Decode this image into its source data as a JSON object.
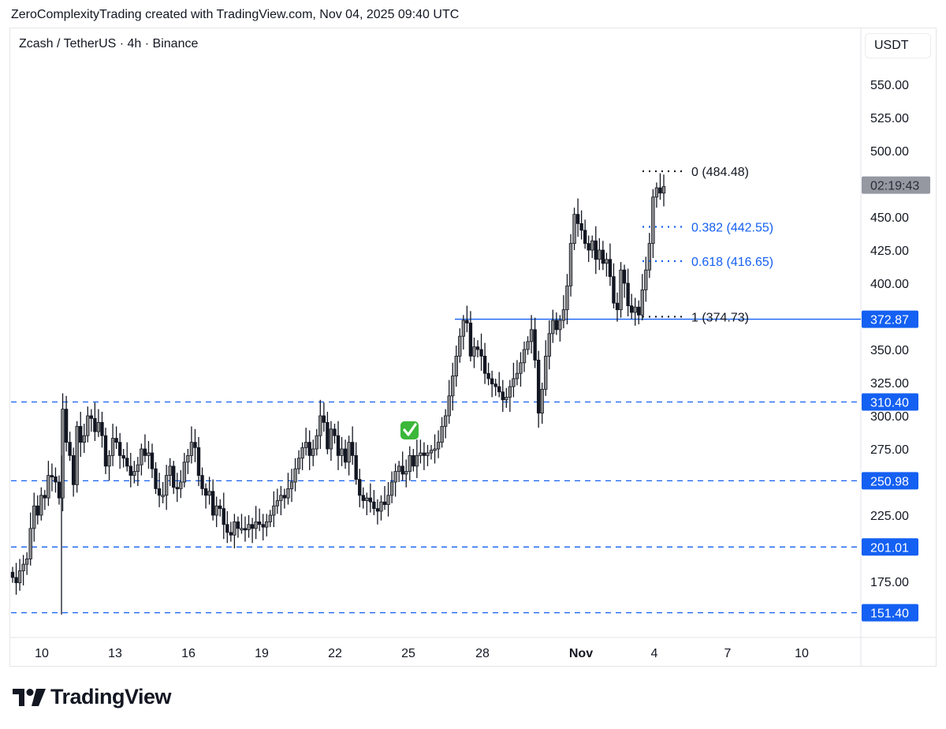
{
  "credit": "ZeroComplexityTrading created with TradingView.com, Nov 04, 2025 09:40 UTC",
  "symbol_title": "Zcash / TetherUS · 4h · Binance",
  "currency": "USDT",
  "logo_text": "TradingView",
  "colors": {
    "accent_blue": "#1460f2",
    "candle": "#131722",
    "candle_up_fill": "#8a8a8a",
    "countdown_bg": "#9598a1",
    "grid_border": "#e0e3eb"
  },
  "countdown_label": "02:19:43",
  "chart_data": {
    "type": "candlestick",
    "title": "Zcash / TetherUS · 4h · Binance",
    "xlabel": "",
    "ylabel": "USDT",
    "ylim": [
      132,
      570
    ],
    "y_ticks": [
      550,
      525,
      500,
      450,
      425,
      400,
      350,
      325,
      300,
      275,
      225,
      175
    ],
    "x_ticks": [
      {
        "label": "10",
        "bold": false
      },
      {
        "label": "13",
        "bold": false
      },
      {
        "label": "16",
        "bold": false
      },
      {
        "label": "19",
        "bold": false
      },
      {
        "label": "22",
        "bold": false
      },
      {
        "label": "25",
        "bold": false
      },
      {
        "label": "28",
        "bold": false
      },
      {
        "label": "Nov",
        "bold": true
      },
      {
        "label": "4",
        "bold": false
      },
      {
        "label": "7",
        "bold": false
      },
      {
        "label": "10",
        "bold": false
      }
    ],
    "horizontal_levels": [
      {
        "value": 372.87,
        "label": "372.87",
        "style": "solid"
      },
      {
        "value": 310.4,
        "label": "310.40",
        "style": "dashed"
      },
      {
        "value": 250.98,
        "label": "250.98",
        "style": "dashed"
      },
      {
        "value": 201.01,
        "label": "201.01",
        "style": "dashed"
      },
      {
        "value": 151.4,
        "label": "151.40",
        "style": "dashed"
      }
    ],
    "fibonacci": [
      {
        "ratio": "0",
        "value": 484.48,
        "label": "0 (484.48)",
        "color": "#131722"
      },
      {
        "ratio": "0.382",
        "value": 442.55,
        "label": "0.382 (442.55)",
        "color": "#1460f2"
      },
      {
        "ratio": "0.618",
        "value": 416.65,
        "label": "0.618 (416.65)",
        "color": "#1460f2"
      },
      {
        "ratio": "1",
        "value": 374.73,
        "label": "1 (374.73)",
        "color": "#131722"
      }
    ],
    "annotations": [
      {
        "type": "emoji",
        "text": "✅",
        "near": "Oct 25"
      }
    ],
    "approx_closes_4h": [
      178,
      174,
      183,
      188,
      192,
      215,
      232,
      225,
      240,
      238,
      255,
      254,
      250,
      238,
      305,
      280,
      270,
      248,
      292,
      280,
      285,
      300,
      298,
      288,
      295,
      285,
      262,
      270,
      283,
      280,
      270,
      268,
      262,
      255,
      258,
      263,
      275,
      270,
      272,
      260,
      245,
      240,
      240,
      255,
      262,
      246,
      245,
      250,
      265,
      270,
      280,
      276,
      255,
      245,
      240,
      243,
      225,
      232,
      230,
      218,
      212,
      210,
      220,
      215,
      215,
      214,
      218,
      215,
      220,
      218,
      216,
      220,
      225,
      232,
      236,
      240,
      238,
      245,
      250,
      260,
      268,
      276,
      280,
      270,
      275,
      285,
      300,
      295,
      275,
      290,
      285,
      270,
      275,
      265,
      280,
      270,
      252,
      240,
      236,
      238,
      235,
      230,
      228,
      235,
      233,
      240,
      250,
      258,
      262,
      256,
      258,
      270,
      262,
      270,
      272,
      270,
      272,
      274,
      275,
      280,
      292,
      300,
      315,
      330,
      345,
      360,
      372,
      370,
      345,
      352,
      350,
      345,
      332,
      328,
      324,
      322,
      318,
      312,
      314,
      322,
      328,
      332,
      340,
      350,
      356,
      365,
      342,
      302,
      320,
      345,
      362,
      372,
      365,
      372,
      380,
      398,
      430,
      452,
      445,
      440,
      430,
      425,
      432,
      418,
      425,
      415,
      418,
      405,
      385,
      380,
      410,
      400,
      383,
      378,
      382,
      376,
      395,
      410,
      430,
      465,
      472,
      468,
      473
    ]
  }
}
